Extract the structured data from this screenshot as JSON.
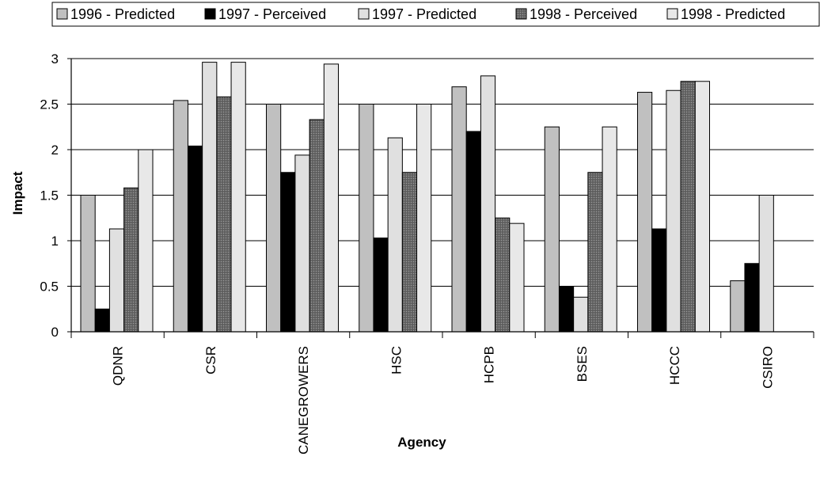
{
  "chart_data": {
    "type": "bar",
    "xlabel": "Agency",
    "ylabel": "Impact",
    "ylim": [
      0,
      3
    ],
    "yticks": [
      "0",
      "0.5",
      "1",
      "1.5",
      "2",
      "2.5",
      "3"
    ],
    "ytick_values": [
      0,
      0.5,
      1,
      1.5,
      2,
      2.5,
      3
    ],
    "grid": true,
    "legend_position": "top",
    "categories": [
      "QDNR",
      "CSR",
      "CANEGROWERS",
      "HSC",
      "HCPB",
      "BSES",
      "HCCC",
      "CSIRO"
    ],
    "series": [
      {
        "name": "1996 - Predicted",
        "color": "#c0c0c0",
        "pattern": "none",
        "values": [
          1.5,
          2.54,
          2.5,
          2.5,
          2.69,
          2.25,
          2.63,
          0.56
        ]
      },
      {
        "name": "1997 - Perceived",
        "color": "#000000",
        "pattern": "none",
        "values": [
          0.25,
          2.04,
          1.75,
          1.03,
          2.2,
          0.5,
          1.13,
          0.75
        ]
      },
      {
        "name": "1997 - Predicted",
        "color": "#e0e0e0",
        "pattern": "none",
        "values": [
          1.13,
          2.96,
          1.94,
          2.13,
          2.81,
          0.38,
          2.65,
          1.5
        ]
      },
      {
        "name": "1998 - Perceived",
        "color": "#707070",
        "pattern": "dots",
        "values": [
          1.58,
          2.58,
          2.33,
          1.75,
          1.25,
          1.75,
          2.75,
          null
        ]
      },
      {
        "name": "1998 - Predicted",
        "color": "#e8e8e8",
        "pattern": "none",
        "values": [
          2.0,
          2.96,
          2.94,
          2.5,
          1.19,
          2.25,
          2.75,
          null
        ]
      }
    ]
  }
}
